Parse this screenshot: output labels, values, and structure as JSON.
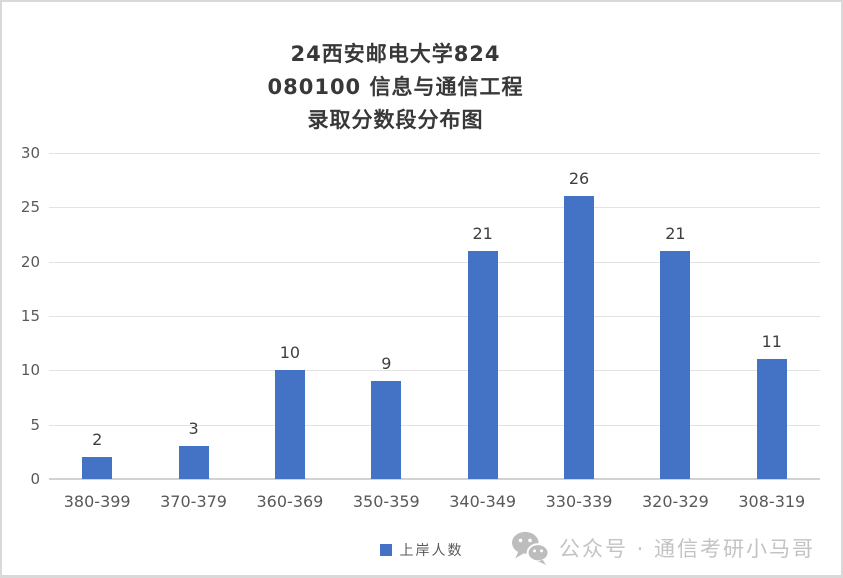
{
  "chart_data": {
    "type": "bar",
    "title": "24西安邮电大学824\n080100 信息与通信工程\n录取分数段分布图",
    "title_lines": [
      "24西安邮电大学824",
      "080100 信息与通信工程",
      "录取分数段分布图"
    ],
    "categories": [
      "380-399",
      "370-379",
      "360-369",
      "350-359",
      "340-349",
      "330-339",
      "320-329",
      "308-319"
    ],
    "series": [
      {
        "name": "上岸人数",
        "values": [
          2,
          3,
          10,
          9,
          21,
          26,
          21,
          11
        ]
      }
    ],
    "xlabel": "",
    "ylabel": "",
    "ylim": [
      0,
      30
    ],
    "yticks": [
      0,
      5,
      10,
      15,
      20,
      25,
      30
    ],
    "grid": true,
    "data_labels": true,
    "legend_position": "bottom"
  },
  "legend": {
    "label": "上岸人数"
  },
  "watermark": {
    "icon": "wechat-icon",
    "text": "公众号 · 通信考研小马哥"
  },
  "colors": {
    "bar": "#4472C4",
    "gridline": "#e3e3e3",
    "axis_line": "#d2d2d2",
    "tick_text": "#595959",
    "data_label_text": "#3f3f3f",
    "title_text": "#383838",
    "watermark_text": "#c3c3c3",
    "frame_border": "#d9d9d9"
  }
}
